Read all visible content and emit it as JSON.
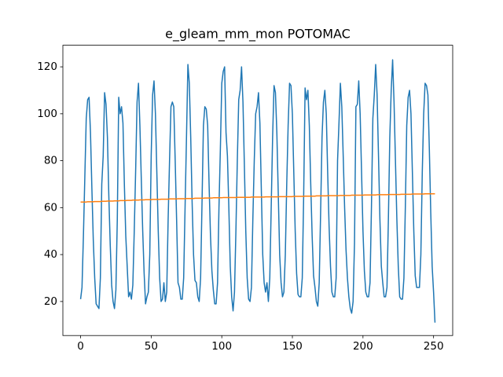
{
  "chart_data": {
    "type": "line",
    "title": "e_gleam_mm_mon POTOMAC",
    "x": [
      0,
      1,
      2,
      3,
      4,
      5,
      6,
      7,
      8,
      9,
      10,
      11,
      12,
      13,
      14,
      15,
      16,
      17,
      18,
      19,
      20,
      21,
      22,
      23,
      24,
      25,
      26,
      27,
      28,
      29,
      30,
      31,
      32,
      33,
      34,
      35,
      36,
      37,
      38,
      39,
      40,
      41,
      42,
      43,
      44,
      45,
      46,
      47,
      48,
      49,
      50,
      51,
      52,
      53,
      54,
      55,
      56,
      57,
      58,
      59,
      60,
      61,
      62,
      63,
      64,
      65,
      66,
      67,
      68,
      69,
      70,
      71,
      72,
      73,
      74,
      75,
      76,
      77,
      78,
      79,
      80,
      81,
      82,
      83,
      84,
      85,
      86,
      87,
      88,
      89,
      90,
      91,
      92,
      93,
      94,
      95,
      96,
      97,
      98,
      99,
      100,
      101,
      102,
      103,
      104,
      105,
      106,
      107,
      108,
      109,
      110,
      111,
      112,
      113,
      114,
      115,
      116,
      117,
      118,
      119,
      120,
      121,
      122,
      123,
      124,
      125,
      126,
      127,
      128,
      129,
      130,
      131,
      132,
      133,
      134,
      135,
      136,
      137,
      138,
      139,
      140,
      141,
      142,
      143,
      144,
      145,
      146,
      147,
      148,
      149,
      150,
      151,
      152,
      153,
      154,
      155,
      156,
      157,
      158,
      159,
      160,
      161,
      162,
      163,
      164,
      165,
      166,
      167,
      168,
      169,
      170,
      171,
      172,
      173,
      174,
      175,
      176,
      177,
      178,
      179,
      180,
      181,
      182,
      183,
      184,
      185,
      186,
      187,
      188,
      189,
      190,
      191,
      192,
      193,
      194,
      195,
      196,
      197,
      198,
      199,
      200,
      201,
      202,
      203,
      204,
      205,
      206,
      207,
      208,
      209,
      210,
      211,
      212,
      213,
      214,
      215,
      216,
      217,
      218,
      219,
      220,
      221,
      222,
      223,
      224,
      225,
      226,
      227,
      228,
      229,
      230,
      231,
      232,
      233,
      234,
      235,
      236,
      237,
      238,
      239,
      240,
      241,
      242,
      243,
      244,
      245,
      246,
      247,
      248,
      249,
      250,
      251
    ],
    "series": [
      {
        "color": "#1f77b4",
        "values": [
          21,
          26,
          48,
          73,
          98,
          106,
          107,
          92,
          68,
          46,
          30,
          19,
          18,
          17,
          30,
          70,
          82,
          109,
          104,
          90,
          65,
          44,
          27,
          20,
          17,
          25,
          55,
          107,
          100,
          103,
          96,
          70,
          48,
          35,
          22,
          24,
          21,
          27,
          50,
          76,
          105,
          113,
          95,
          72,
          50,
          32,
          19,
          22,
          24,
          40,
          82,
          108,
          114,
          100,
          75,
          50,
          30,
          20,
          21,
          28,
          20,
          24,
          55,
          80,
          103,
          105,
          103,
          80,
          55,
          28,
          26,
          21,
          21,
          30,
          60,
          90,
          121,
          113,
          90,
          62,
          40,
          29,
          28,
          22,
          20,
          30,
          62,
          95,
          103,
          102,
          95,
          70,
          48,
          33,
          25,
          19,
          19,
          28,
          60,
          85,
          113,
          118,
          120,
          92,
          82,
          60,
          35,
          22,
          16,
          24,
          50,
          80,
          106,
          110,
          120,
          105,
          78,
          50,
          30,
          21,
          20,
          26,
          55,
          80,
          100,
          103,
          109,
          96,
          68,
          40,
          28,
          24,
          28,
          20,
          30,
          60,
          90,
          112,
          109,
          92,
          66,
          40,
          28,
          22,
          24,
          40,
          70,
          95,
          113,
          112,
          100,
          75,
          50,
          32,
          23,
          22,
          22,
          30,
          65,
          111,
          106,
          110,
          95,
          70,
          48,
          31,
          26,
          20,
          18,
          28,
          58,
          90,
          105,
          110,
          100,
          75,
          52,
          35,
          24,
          22,
          22,
          30,
          80,
          96,
          113,
          103,
          82,
          60,
          42,
          30,
          22,
          17,
          15,
          20,
          45,
          103,
          104,
          114,
          100,
          75,
          50,
          33,
          24,
          22,
          22,
          28,
          60,
          98,
          108,
          121,
          108,
          82,
          55,
          35,
          28,
          22,
          22,
          26,
          55,
          90,
          110,
          123,
          105,
          80,
          55,
          35,
          22,
          21,
          21,
          30,
          60,
          95,
          107,
          110,
          100,
          75,
          50,
          31,
          26,
          26,
          26,
          40,
          75,
          100,
          113,
          112,
          108,
          85,
          58,
          35,
          24,
          11
        ]
      },
      {
        "color": "#ff7f0e",
        "values": [
          62.4,
          62.4,
          62.4,
          62.4,
          62.4,
          62.5,
          62.5,
          62.5,
          62.5,
          62.5,
          62.6,
          62.6,
          62.6,
          62.6,
          62.6,
          62.7,
          62.7,
          62.7,
          62.7,
          62.8,
          62.8,
          62.8,
          62.8,
          62.8,
          62.9,
          62.9,
          62.9,
          62.9,
          63.0,
          63.0,
          63.0,
          63.0,
          63.0,
          63.1,
          63.1,
          63.1,
          63.1,
          63.2,
          63.2,
          63.2,
          63.2,
          63.2,
          63.3,
          63.3,
          63.3,
          63.3,
          63.4,
          63.4,
          63.4,
          63.4,
          63.4,
          63.5,
          63.5,
          63.5,
          63.5,
          63.5,
          63.5,
          63.6,
          63.6,
          63.6,
          63.6,
          63.6,
          63.6,
          63.7,
          63.7,
          63.7,
          63.7,
          63.7,
          63.7,
          63.8,
          63.8,
          63.8,
          63.8,
          63.8,
          63.8,
          63.9,
          63.9,
          63.9,
          63.9,
          63.9,
          63.9,
          64.0,
          64.0,
          64.0,
          64.0,
          64.0,
          64.0,
          64.0,
          64.1,
          64.1,
          64.1,
          64.1,
          64.1,
          64.1,
          64.2,
          64.2,
          64.2,
          64.2,
          64.2,
          64.2,
          64.2,
          64.3,
          64.3,
          64.3,
          64.3,
          64.3,
          64.3,
          64.3,
          64.3,
          64.3,
          64.3,
          64.4,
          64.4,
          64.4,
          64.4,
          64.4,
          64.4,
          64.4,
          64.4,
          64.4,
          64.4,
          64.5,
          64.5,
          64.5,
          64.5,
          64.5,
          64.5,
          64.5,
          64.5,
          64.5,
          64.5,
          64.6,
          64.6,
          64.6,
          64.6,
          64.6,
          64.6,
          64.6,
          64.6,
          64.6,
          64.6,
          64.7,
          64.7,
          64.7,
          64.7,
          64.7,
          64.7,
          64.7,
          64.7,
          64.7,
          64.7,
          64.8,
          64.8,
          64.8,
          64.8,
          64.8,
          64.8,
          64.8,
          64.8,
          64.9,
          64.9,
          64.9,
          64.9,
          64.9,
          64.9,
          64.9,
          64.9,
          65.0,
          65.0,
          65.0,
          65.0,
          65.0,
          65.0,
          65.0,
          65.0,
          65.1,
          65.1,
          65.1,
          65.1,
          65.1,
          65.1,
          65.1,
          65.1,
          65.1,
          65.2,
          65.2,
          65.2,
          65.2,
          65.2,
          65.2,
          65.2,
          65.2,
          65.3,
          65.3,
          65.3,
          65.3,
          65.3,
          65.3,
          65.3,
          65.3,
          65.3,
          65.4,
          65.4,
          65.4,
          65.4,
          65.4,
          65.4,
          65.4,
          65.4,
          65.4,
          65.5,
          65.5,
          65.5,
          65.5,
          65.5,
          65.5,
          65.5,
          65.5,
          65.6,
          65.6,
          65.6,
          65.6,
          65.6,
          65.6,
          65.6,
          65.6,
          65.6,
          65.7,
          65.7,
          65.7,
          65.7,
          65.7,
          65.7,
          65.7,
          65.7,
          65.8,
          65.8,
          65.8,
          65.8,
          65.8,
          65.8,
          65.8,
          65.8,
          65.8,
          65.9,
          65.9,
          65.9,
          65.9,
          65.9,
          65.9,
          65.9,
          65.9
        ]
      }
    ],
    "xlim": [
      -12.55,
      263.55
    ],
    "xticks": [
      0,
      50,
      100,
      150,
      200,
      250
    ],
    "ylim": [
      5.5,
      129.2
    ],
    "yticks": [
      20,
      40,
      60,
      80,
      100,
      120
    ]
  }
}
